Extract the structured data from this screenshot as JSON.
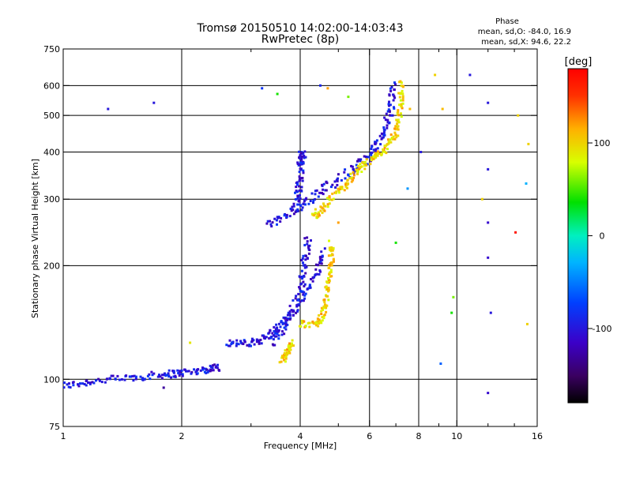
{
  "chart_data": {
    "type": "scatter",
    "title": "Tromsø 20150510 14:02:00-14:03:43",
    "subtitle": "RwPretec (8p)",
    "xlabel": "Frequency [MHz]",
    "ylabel": "Stationary phase Virtual Height [km]",
    "x_scale": "log",
    "y_scale": "log",
    "xlim": [
      1,
      16
    ],
    "ylim": [
      75,
      750
    ],
    "x_ticks": [
      1,
      2,
      4,
      6,
      8,
      10,
      16
    ],
    "x_tick_labels": [
      "1",
      "2",
      "4",
      "6",
      "8",
      "10",
      "16"
    ],
    "x_minor_ticks": [
      3,
      5,
      7,
      9,
      12,
      14
    ],
    "y_ticks": [
      75,
      100,
      200,
      300,
      400,
      500,
      600,
      750
    ],
    "y_tick_labels": [
      "75",
      "100",
      "200",
      "300",
      "400",
      "500",
      "600",
      "750"
    ],
    "grid": true,
    "x_gridlines": [
      2,
      4,
      6,
      8,
      10
    ],
    "y_gridlines": [
      100,
      200,
      300,
      400,
      500,
      600
    ],
    "stats": {
      "header": "Phase",
      "line_O": "mean, sd,O: -84.0, 16.9",
      "line_X": "mean, sd,X:  94.6, 22.2"
    },
    "colorbar": {
      "label": "[deg]",
      "range": [
        -180,
        180
      ],
      "ticks": [
        100,
        0,
        -100
      ],
      "tick_labels": [
        "100",
        "0",
        "-100"
      ]
    },
    "traces": [
      {
        "kind": "curve",
        "phase": -100,
        "spread": 0.015,
        "points": [
          [
            1.0,
            96
          ],
          [
            1.2,
            99
          ],
          [
            1.5,
            101
          ],
          [
            1.8,
            103
          ],
          [
            2.0,
            104
          ],
          [
            2.3,
            106
          ],
          [
            2.5,
            108
          ]
        ]
      },
      {
        "kind": "curve",
        "phase": -100,
        "spread": 0.015,
        "points": [
          [
            2.6,
            125
          ],
          [
            3.0,
            124
          ],
          [
            3.3,
            130
          ],
          [
            3.6,
            140
          ],
          [
            4.0,
            160
          ],
          [
            4.4,
            190
          ],
          [
            4.6,
            220
          ]
        ]
      },
      {
        "kind": "curve",
        "phase": -100,
        "spread": 0.02,
        "points": [
          [
            3.4,
            125
          ],
          [
            3.7,
            140
          ],
          [
            4.0,
            170
          ],
          [
            4.1,
            200
          ],
          [
            4.2,
            240
          ]
        ]
      },
      {
        "kind": "curve",
        "phase": -100,
        "spread": 0.02,
        "points": [
          [
            3.3,
            255
          ],
          [
            3.8,
            275
          ],
          [
            4.2,
            300
          ],
          [
            4.8,
            330
          ],
          [
            5.5,
            360
          ],
          [
            6.0,
            390
          ],
          [
            6.5,
            440
          ],
          [
            6.8,
            520
          ],
          [
            6.9,
            610
          ]
        ]
      },
      {
        "kind": "curve",
        "phase": -100,
        "spread": 0.02,
        "points": [
          [
            3.9,
            290
          ],
          [
            4.0,
            330
          ],
          [
            4.0,
            380
          ],
          [
            4.1,
            400
          ]
        ]
      },
      {
        "kind": "curve",
        "phase": 100,
        "spread": 0.015,
        "points": [
          [
            3.6,
            112
          ],
          [
            3.7,
            118
          ],
          [
            3.8,
            125
          ]
        ]
      },
      {
        "kind": "curve",
        "phase": 100,
        "spread": 0.015,
        "points": [
          [
            4.0,
            140
          ],
          [
            4.4,
            140
          ],
          [
            4.6,
            150
          ],
          [
            4.7,
            175
          ],
          [
            4.8,
            200
          ],
          [
            4.8,
            230
          ]
        ]
      },
      {
        "kind": "curve",
        "phase": 100,
        "spread": 0.015,
        "points": [
          [
            4.3,
            270
          ],
          [
            4.6,
            285
          ],
          [
            5.1,
            320
          ],
          [
            5.5,
            350
          ],
          [
            6.0,
            380
          ],
          [
            6.5,
            400
          ],
          [
            7.0,
            450
          ],
          [
            7.2,
            520
          ],
          [
            7.2,
            620
          ]
        ]
      }
    ],
    "scatter_points": [
      [
        1.3,
        520,
        -100
      ],
      [
        1.7,
        540,
        -100
      ],
      [
        3.2,
        590,
        -80
      ],
      [
        3.5,
        570,
        40
      ],
      [
        4.5,
        600,
        -90
      ],
      [
        4.7,
        590,
        120
      ],
      [
        5.3,
        560,
        60
      ],
      [
        8.8,
        640,
        100
      ],
      [
        9.2,
        520,
        110
      ],
      [
        10.8,
        640,
        -100
      ],
      [
        12.0,
        540,
        -100
      ],
      [
        12.0,
        360,
        -100
      ],
      [
        12.0,
        260,
        -110
      ],
      [
        12.0,
        210,
        -110
      ],
      [
        12.0,
        92,
        -110
      ],
      [
        14.1,
        245,
        170
      ],
      [
        14.3,
        500,
        100
      ],
      [
        15.2,
        420,
        100
      ],
      [
        15.0,
        330,
        -30
      ],
      [
        15.1,
        140,
        100
      ],
      [
        9.8,
        165,
        60
      ],
      [
        9.7,
        150,
        40
      ],
      [
        9.1,
        110,
        -60
      ],
      [
        7.6,
        520,
        110
      ],
      [
        8.1,
        400,
        -100
      ],
      [
        7.5,
        320,
        -40
      ],
      [
        5.0,
        260,
        120
      ],
      [
        7.0,
        230,
        40
      ],
      [
        11.6,
        300,
        100
      ],
      [
        12.2,
        150,
        -100
      ],
      [
        1.8,
        95,
        -130
      ],
      [
        2.1,
        125,
        90
      ]
    ]
  }
}
